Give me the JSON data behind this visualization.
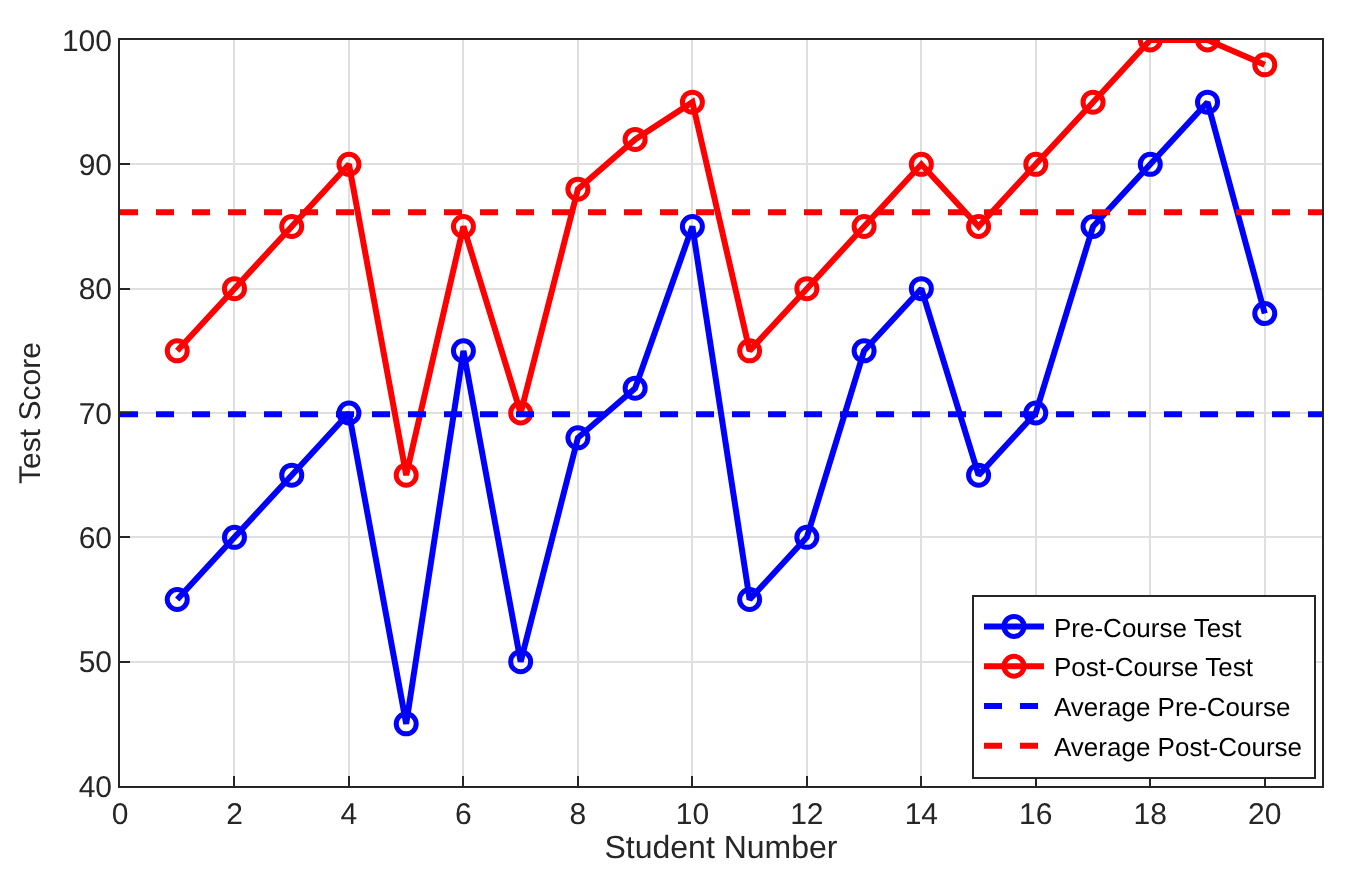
{
  "chart_data": {
    "type": "line",
    "xlabel": "Student Number",
    "ylabel": "Test Score",
    "x": [
      1,
      2,
      3,
      4,
      5,
      6,
      7,
      8,
      9,
      10,
      11,
      12,
      13,
      14,
      15,
      16,
      17,
      18,
      19,
      20
    ],
    "series": [
      {
        "name": "Pre-Course Test",
        "color": "#0000ff",
        "values": [
          55,
          60,
          65,
          70,
          45,
          75,
          50,
          68,
          72,
          85,
          55,
          60,
          75,
          80,
          65,
          70,
          85,
          90,
          95,
          78
        ]
      },
      {
        "name": "Post-Course Test",
        "color": "#ff0000",
        "values": [
          75,
          80,
          85,
          90,
          65,
          85,
          70,
          88,
          92,
          95,
          75,
          80,
          85,
          90,
          85,
          90,
          95,
          100,
          100,
          98
        ]
      }
    ],
    "ref_lines": [
      {
        "axis": "y",
        "value": 69.9,
        "label": "Average Pre-Course",
        "color": "#0000ff",
        "line_style": "dashed"
      },
      {
        "axis": "y",
        "value": 86.15,
        "label": "Average Post-Course",
        "color": "#ff0000",
        "line_style": "dashed"
      }
    ],
    "xlim": [
      0,
      21
    ],
    "xticks": [
      0,
      2,
      4,
      6,
      8,
      10,
      12,
      14,
      16,
      18,
      20
    ],
    "ylim": [
      40,
      100
    ],
    "yticks": [
      40,
      50,
      60,
      70,
      80,
      90,
      100
    ],
    "grid": true,
    "legend": "bottom right",
    "marker": "circle",
    "line_style": "solid"
  }
}
